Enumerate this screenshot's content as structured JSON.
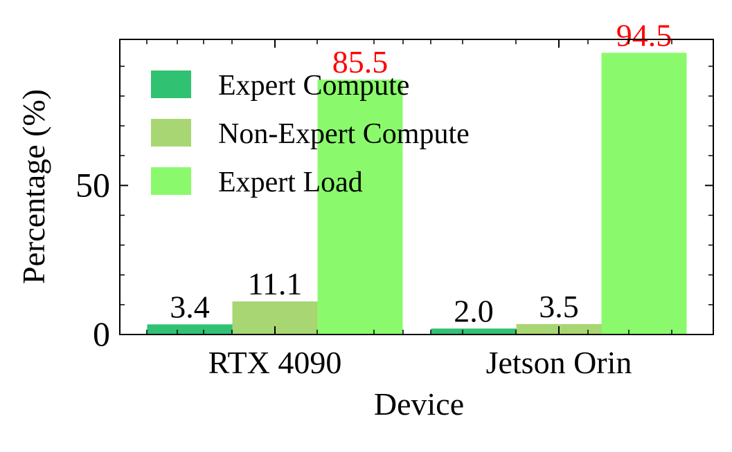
{
  "chart_data": {
    "type": "bar",
    "title": "",
    "xlabel": "Device",
    "ylabel": "Percentage (%)",
    "categories": [
      "RTX 4090",
      "Jetson Orin"
    ],
    "series": [
      {
        "name": "Expert Compute",
        "values": [
          3.4,
          2.0
        ],
        "labels": [
          "3.4",
          "2.0"
        ],
        "color": "#31c172",
        "label_color": "#000000"
      },
      {
        "name": "Non-Expert Compute",
        "values": [
          11.1,
          3.5
        ],
        "labels": [
          "11.1",
          "3.5"
        ],
        "color": "#a8d672",
        "label_color": "#000000"
      },
      {
        "name": "Expert Load",
        "values": [
          85.5,
          94.5
        ],
        "labels": [
          "85.5",
          "94.5"
        ],
        "color": "#8afa6c",
        "label_color": "#ff0000"
      }
    ],
    "yticks": [
      0,
      50
    ],
    "ylim": [
      0,
      99
    ],
    "grid": false,
    "legend": "top-left"
  }
}
